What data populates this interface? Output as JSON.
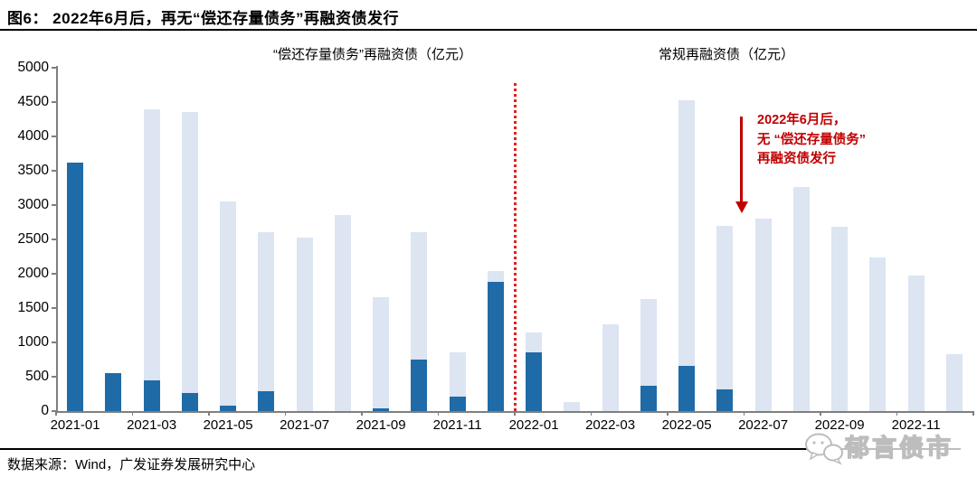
{
  "figure": {
    "title": "图6： 2022年6月后，再无“偿还存量债务”再融资债发行",
    "footer": "数据来源：Wind，广发证券发展研究中心",
    "watermark": "郁言债市"
  },
  "chart_data": {
    "type": "bar",
    "bar_style": "overlapped",
    "grid": false,
    "legend_position": "top",
    "ylim": [
      0,
      5000
    ],
    "y_ticks": [
      0,
      500,
      1000,
      1500,
      2000,
      2500,
      3000,
      3500,
      4000,
      4500,
      5000
    ],
    "x_tick_labels": [
      "2021-01",
      "2021-03",
      "2021-05",
      "2021-07",
      "2021-09",
      "2021-11",
      "2022-01",
      "2022-03",
      "2022-05",
      "2022-07",
      "2022-09",
      "2022-11"
    ],
    "categories": [
      "2021-01",
      "2021-02",
      "2021-03",
      "2021-04",
      "2021-05",
      "2021-06",
      "2021-07",
      "2021-08",
      "2021-09",
      "2021-10",
      "2021-11",
      "2021-12",
      "2022-01",
      "2022-02",
      "2022-03",
      "2022-04",
      "2022-05",
      "2022-06",
      "2022-07",
      "2022-08",
      "2022-09",
      "2022-10",
      "2022-11",
      "2022-12"
    ],
    "series": [
      {
        "name": "“偿还存量债务”再融资债（亿元）",
        "color": "#1f6ba8",
        "values": [
          3620,
          550,
          450,
          265,
          80,
          295,
          0,
          0,
          35,
          745,
          210,
          1880,
          850,
          0,
          0,
          375,
          655,
          320,
          0,
          0,
          0,
          0,
          0,
          0
        ]
      },
      {
        "name": "常规再融资债（亿元）",
        "color": "#dce5f1",
        "values": [
          0,
          0,
          4400,
          4350,
          3050,
          2610,
          2530,
          2860,
          1655,
          2610,
          850,
          2040,
          1150,
          130,
          1260,
          1630,
          4530,
          2700,
          2800,
          3260,
          2680,
          2240,
          1970,
          830
        ]
      }
    ],
    "divider_line": {
      "color": "#e02020",
      "style": "dotted",
      "between": [
        "2021-12",
        "2022-01"
      ]
    },
    "annotation": {
      "lines": [
        "2022年6月后，",
        "无 “偿还存量债务”",
        "再融资债发行"
      ],
      "color": "#c00000",
      "arrow": "down"
    }
  }
}
